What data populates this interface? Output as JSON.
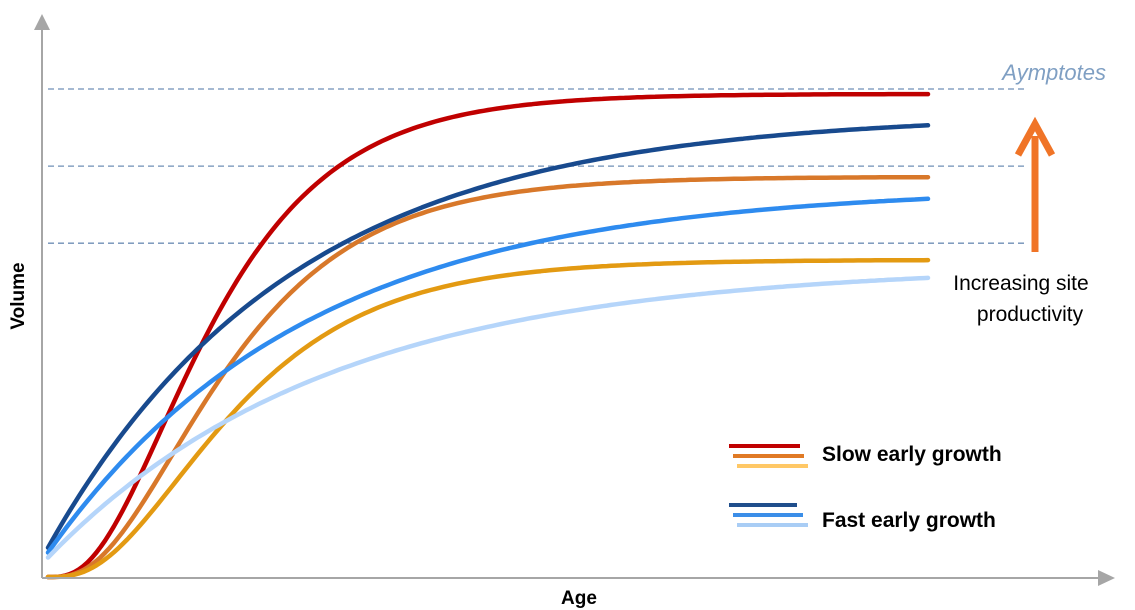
{
  "chart_data": {
    "type": "line",
    "xlabel": "Age",
    "ylabel": "Volume",
    "xlim": [
      0,
      100
    ],
    "ylim": [
      0,
      100
    ],
    "grid": false,
    "asymptote_label": "Aymptotes",
    "asymptote_levels": [
      100,
      84.2,
      68.4
    ],
    "annotation": {
      "lines": [
        "Increasing site",
        "productivity"
      ],
      "arrow_color": "#f07427"
    },
    "legend": {
      "position": "bottom-right",
      "groups": [
        {
          "label": "Slow early growth",
          "colors": [
            "#c00000",
            "#e07a25",
            "#ffc866"
          ]
        },
        {
          "label": "Fast early growth",
          "colors": [
            "#1f4e8c",
            "#3b8ee8",
            "#a9cdf5"
          ]
        }
      ]
    },
    "series": [
      {
        "group": "Slow early growth",
        "color": "#c00000",
        "model": "sigmoid",
        "asymptote": 99,
        "k": 0.091,
        "p": 3.2,
        "start": 0
      },
      {
        "group": "Slow early growth",
        "color": "#d8782a",
        "model": "sigmoid",
        "asymptote": 82,
        "k": 0.083,
        "p": 3.2,
        "start": 0
      },
      {
        "group": "Slow early growth",
        "color": "#e39a12",
        "model": "sigmoid",
        "asymptote": 65,
        "k": 0.08,
        "p": 3.2,
        "start": 0
      },
      {
        "group": "Fast early growth",
        "color": "#184a8e",
        "model": "exponential",
        "asymptote": 95,
        "k": 0.036,
        "start": 6
      },
      {
        "group": "Fast early growth",
        "color": "#2e8bef",
        "model": "exponential",
        "asymptote": 80,
        "k": 0.034,
        "start": 5
      },
      {
        "group": "Fast early growth",
        "color": "#b5d5fa",
        "model": "exponential",
        "asymptote": 64,
        "k": 0.031,
        "start": 4
      }
    ]
  }
}
